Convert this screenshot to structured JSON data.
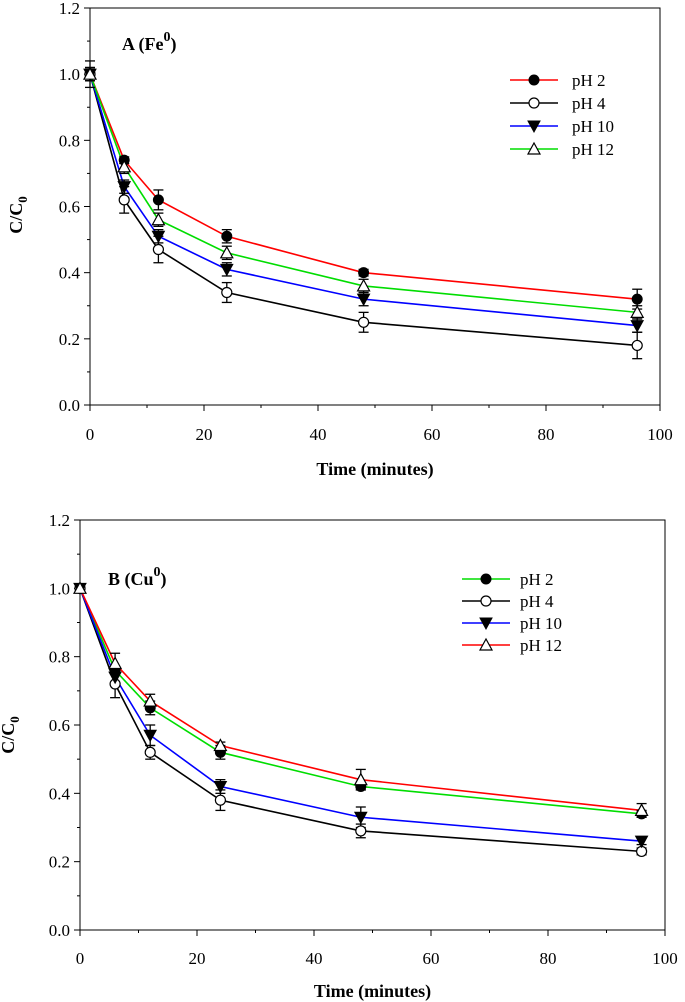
{
  "chart_data": [
    {
      "type": "line",
      "panel": "top",
      "title_main": "A (Fe",
      "title_sup": "0",
      "title_end": ")",
      "xlabel": "Time (minutes)",
      "ylabel_main": "C/C",
      "ylabel_sub": "0",
      "xlim": [
        0,
        100
      ],
      "ylim": [
        0.0,
        1.2
      ],
      "xticks": [
        "0",
        "20",
        "40",
        "60",
        "80",
        "100"
      ],
      "yticks": [
        "0.0",
        "0.2",
        "0.4",
        "0.6",
        "0.8",
        "1.0",
        "1.2"
      ],
      "legend_position": "top-right",
      "x": [
        0,
        6,
        12,
        24,
        48,
        96
      ],
      "series": [
        {
          "name": "pH 2",
          "color": "#ff0000",
          "marker": "filled-circle",
          "values": [
            1.0,
            0.74,
            0.62,
            0.51,
            0.4,
            0.32
          ],
          "errors": [
            0.02,
            0.01,
            0.03,
            0.02,
            0.01,
            0.03
          ]
        },
        {
          "name": "pH 4",
          "color": "#000000",
          "marker": "open-circle",
          "values": [
            1.0,
            0.62,
            0.47,
            0.34,
            0.25,
            0.18
          ],
          "errors": [
            0.04,
            0.04,
            0.04,
            0.03,
            0.03,
            0.04
          ]
        },
        {
          "name": "pH 10",
          "color": "#0000ff",
          "marker": "filled-triangle-down",
          "values": [
            1.0,
            0.66,
            0.51,
            0.41,
            0.32,
            0.24
          ],
          "errors": [
            0.02,
            0.02,
            0.02,
            0.02,
            0.02,
            0.02
          ]
        },
        {
          "name": "pH 12",
          "color": "#00dd00",
          "marker": "open-triangle-up",
          "values": [
            1.0,
            0.72,
            0.56,
            0.46,
            0.36,
            0.28
          ],
          "errors": [
            0.02,
            0.02,
            0.02,
            0.02,
            0.02,
            0.02
          ]
        }
      ]
    },
    {
      "type": "line",
      "panel": "bottom",
      "title_main": "B (Cu",
      "title_sup": "0",
      "title_end": ")",
      "xlabel": "Time (minutes)",
      "ylabel_main": "C/C",
      "ylabel_sub": "0",
      "xlim": [
        0,
        100
      ],
      "ylim": [
        0.0,
        1.2
      ],
      "xticks": [
        "0",
        "20",
        "40",
        "60",
        "80",
        "100"
      ],
      "yticks": [
        "0.0",
        "0.2",
        "0.4",
        "0.6",
        "0.8",
        "1.0",
        "1.2"
      ],
      "legend_position": "top-right",
      "x": [
        0,
        6,
        12,
        24,
        48,
        96
      ],
      "series": [
        {
          "name": "pH 2",
          "color": "#00dd00",
          "marker": "filled-circle",
          "values": [
            1.0,
            0.76,
            0.65,
            0.52,
            0.42,
            0.34
          ],
          "errors": [
            0.01,
            0.01,
            0.02,
            0.02,
            0.01,
            0.01
          ]
        },
        {
          "name": "pH 4",
          "color": "#000000",
          "marker": "open-circle",
          "values": [
            1.0,
            0.72,
            0.52,
            0.38,
            0.29,
            0.23
          ],
          "errors": [
            0.01,
            0.04,
            0.02,
            0.03,
            0.02,
            0.01
          ]
        },
        {
          "name": "pH 10",
          "color": "#0000ff",
          "marker": "filled-triangle-down",
          "values": [
            1.0,
            0.74,
            0.57,
            0.42,
            0.33,
            0.26
          ],
          "errors": [
            0.01,
            0.02,
            0.03,
            0.02,
            0.03,
            0.01
          ]
        },
        {
          "name": "pH 12",
          "color": "#ff0000",
          "marker": "open-triangle-up",
          "values": [
            1.0,
            0.78,
            0.67,
            0.54,
            0.44,
            0.35
          ],
          "errors": [
            0.01,
            0.03,
            0.02,
            0.01,
            0.03,
            0.02
          ]
        }
      ]
    }
  ]
}
